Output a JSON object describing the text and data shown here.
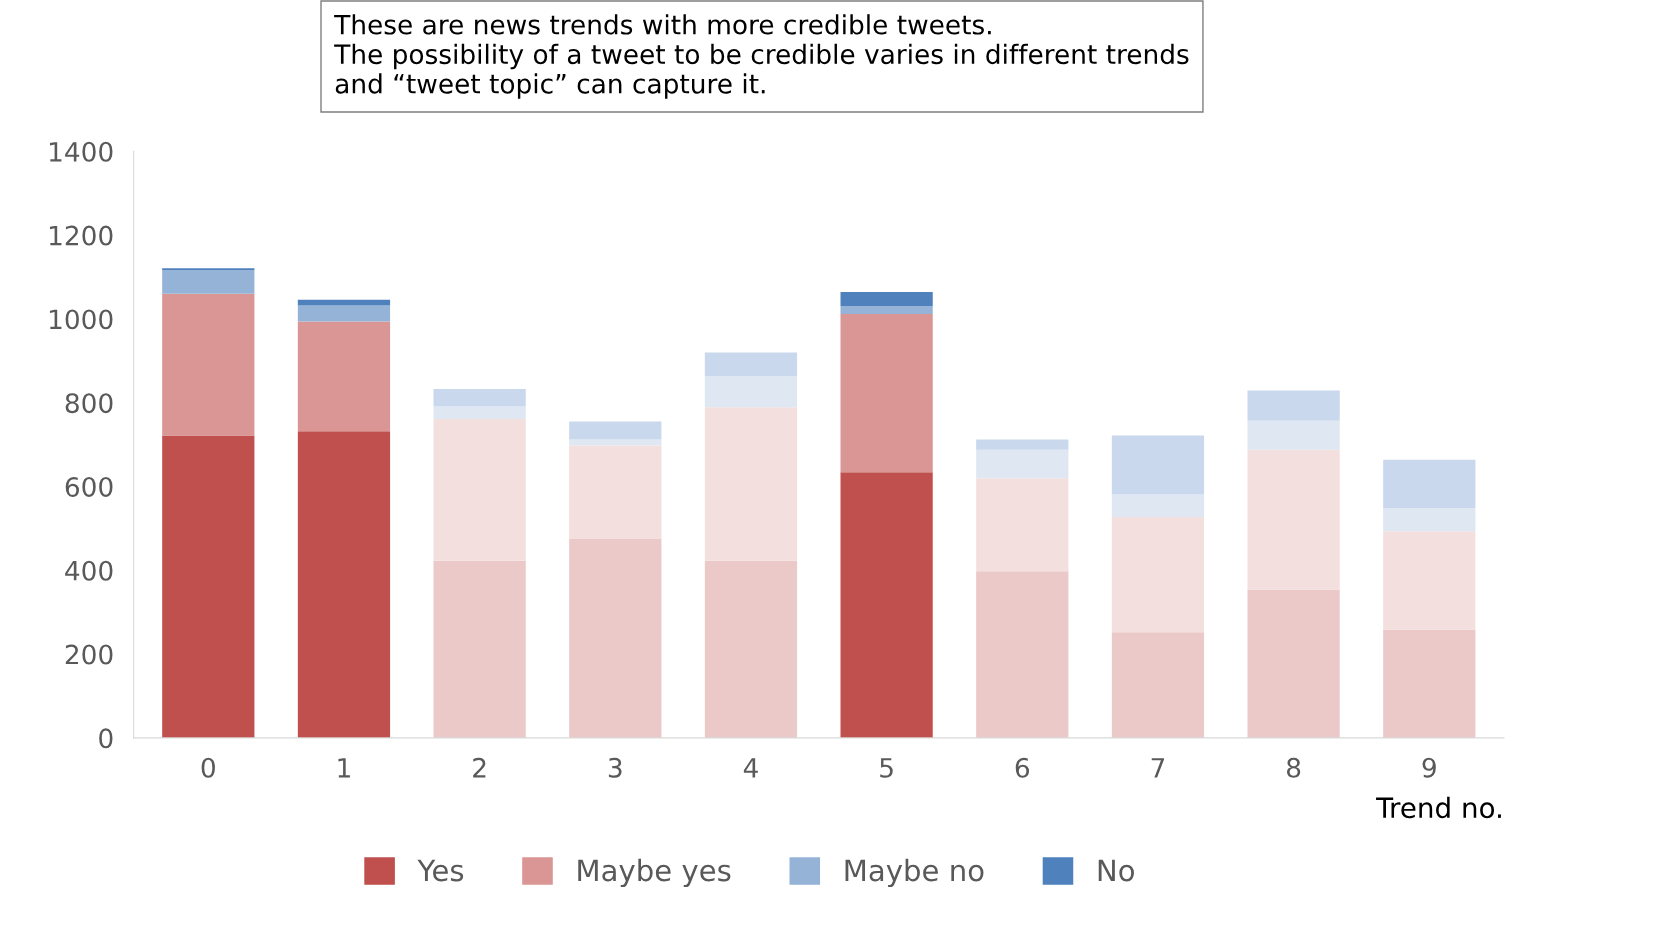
{
  "chart_data": {
    "type": "bar",
    "stacked": true,
    "xlabel": "Trend no.",
    "categories": [
      "0",
      "1",
      "2",
      "3",
      "4",
      "5",
      "6",
      "7",
      "8",
      "9"
    ],
    "series": [
      {
        "name": "Yes",
        "color": "#c0504d",
        "colors": [
          "#c0504d",
          "#c0504d",
          "#ecc9c9",
          "#ecc9c9",
          "#ecc9c9",
          "#c0504d",
          "#ecc9c9",
          "#ecc9c9",
          "#ecc9c9",
          "#ecc9c9"
        ],
        "values": [
          722,
          732,
          423,
          475,
          423,
          634,
          398,
          252,
          354,
          258
        ]
      },
      {
        "name": "Maybe yes",
        "color": "#da9694",
        "colors": [
          "#da9694",
          "#da9694",
          "#f4dfdf",
          "#f4dfdf",
          "#f4dfdf",
          "#da9694",
          "#f4dfdf",
          "#f4dfdf",
          "#f4dfdf",
          "#f4dfdf"
        ],
        "values": [
          338,
          262,
          338,
          223,
          366,
          378,
          222,
          275,
          334,
          235
        ]
      },
      {
        "name": "Maybe no",
        "color": "#95b3d7",
        "colors": [
          "#95b3d7",
          "#95b3d7",
          "#dee7f2",
          "#dee7f2",
          "#dee7f2",
          "#95b3d7",
          "#dee7f2",
          "#dee7f2",
          "#dee7f2",
          "#dee7f2"
        ],
        "values": [
          57,
          38,
          30,
          14,
          74,
          18,
          68,
          54,
          69,
          56
        ]
      },
      {
        "name": "No",
        "color": "#4f81bd",
        "colors": [
          "#4f81bd",
          "#4f81bd",
          "#c9d8ec",
          "#c9d8ec",
          "#c9d8ec",
          "#4f81bd",
          "#c9d8ec",
          "#c9d8ec",
          "#c9d8ec",
          "#c9d8ec"
        ],
        "values": [
          4,
          14,
          42,
          43,
          57,
          34,
          24,
          141,
          72,
          115
        ]
      }
    ],
    "ylim": [
      0,
      1400
    ],
    "yticks": [
      0,
      200,
      400,
      600,
      800,
      1000,
      1200,
      1400
    ],
    "grid": false,
    "legend": "bottom",
    "annotations": [
      "These are news trends with more credible tweets.\nThe possibility of a tweet to be credible varies in different trends\nand “tweet topic” can capture it."
    ]
  }
}
